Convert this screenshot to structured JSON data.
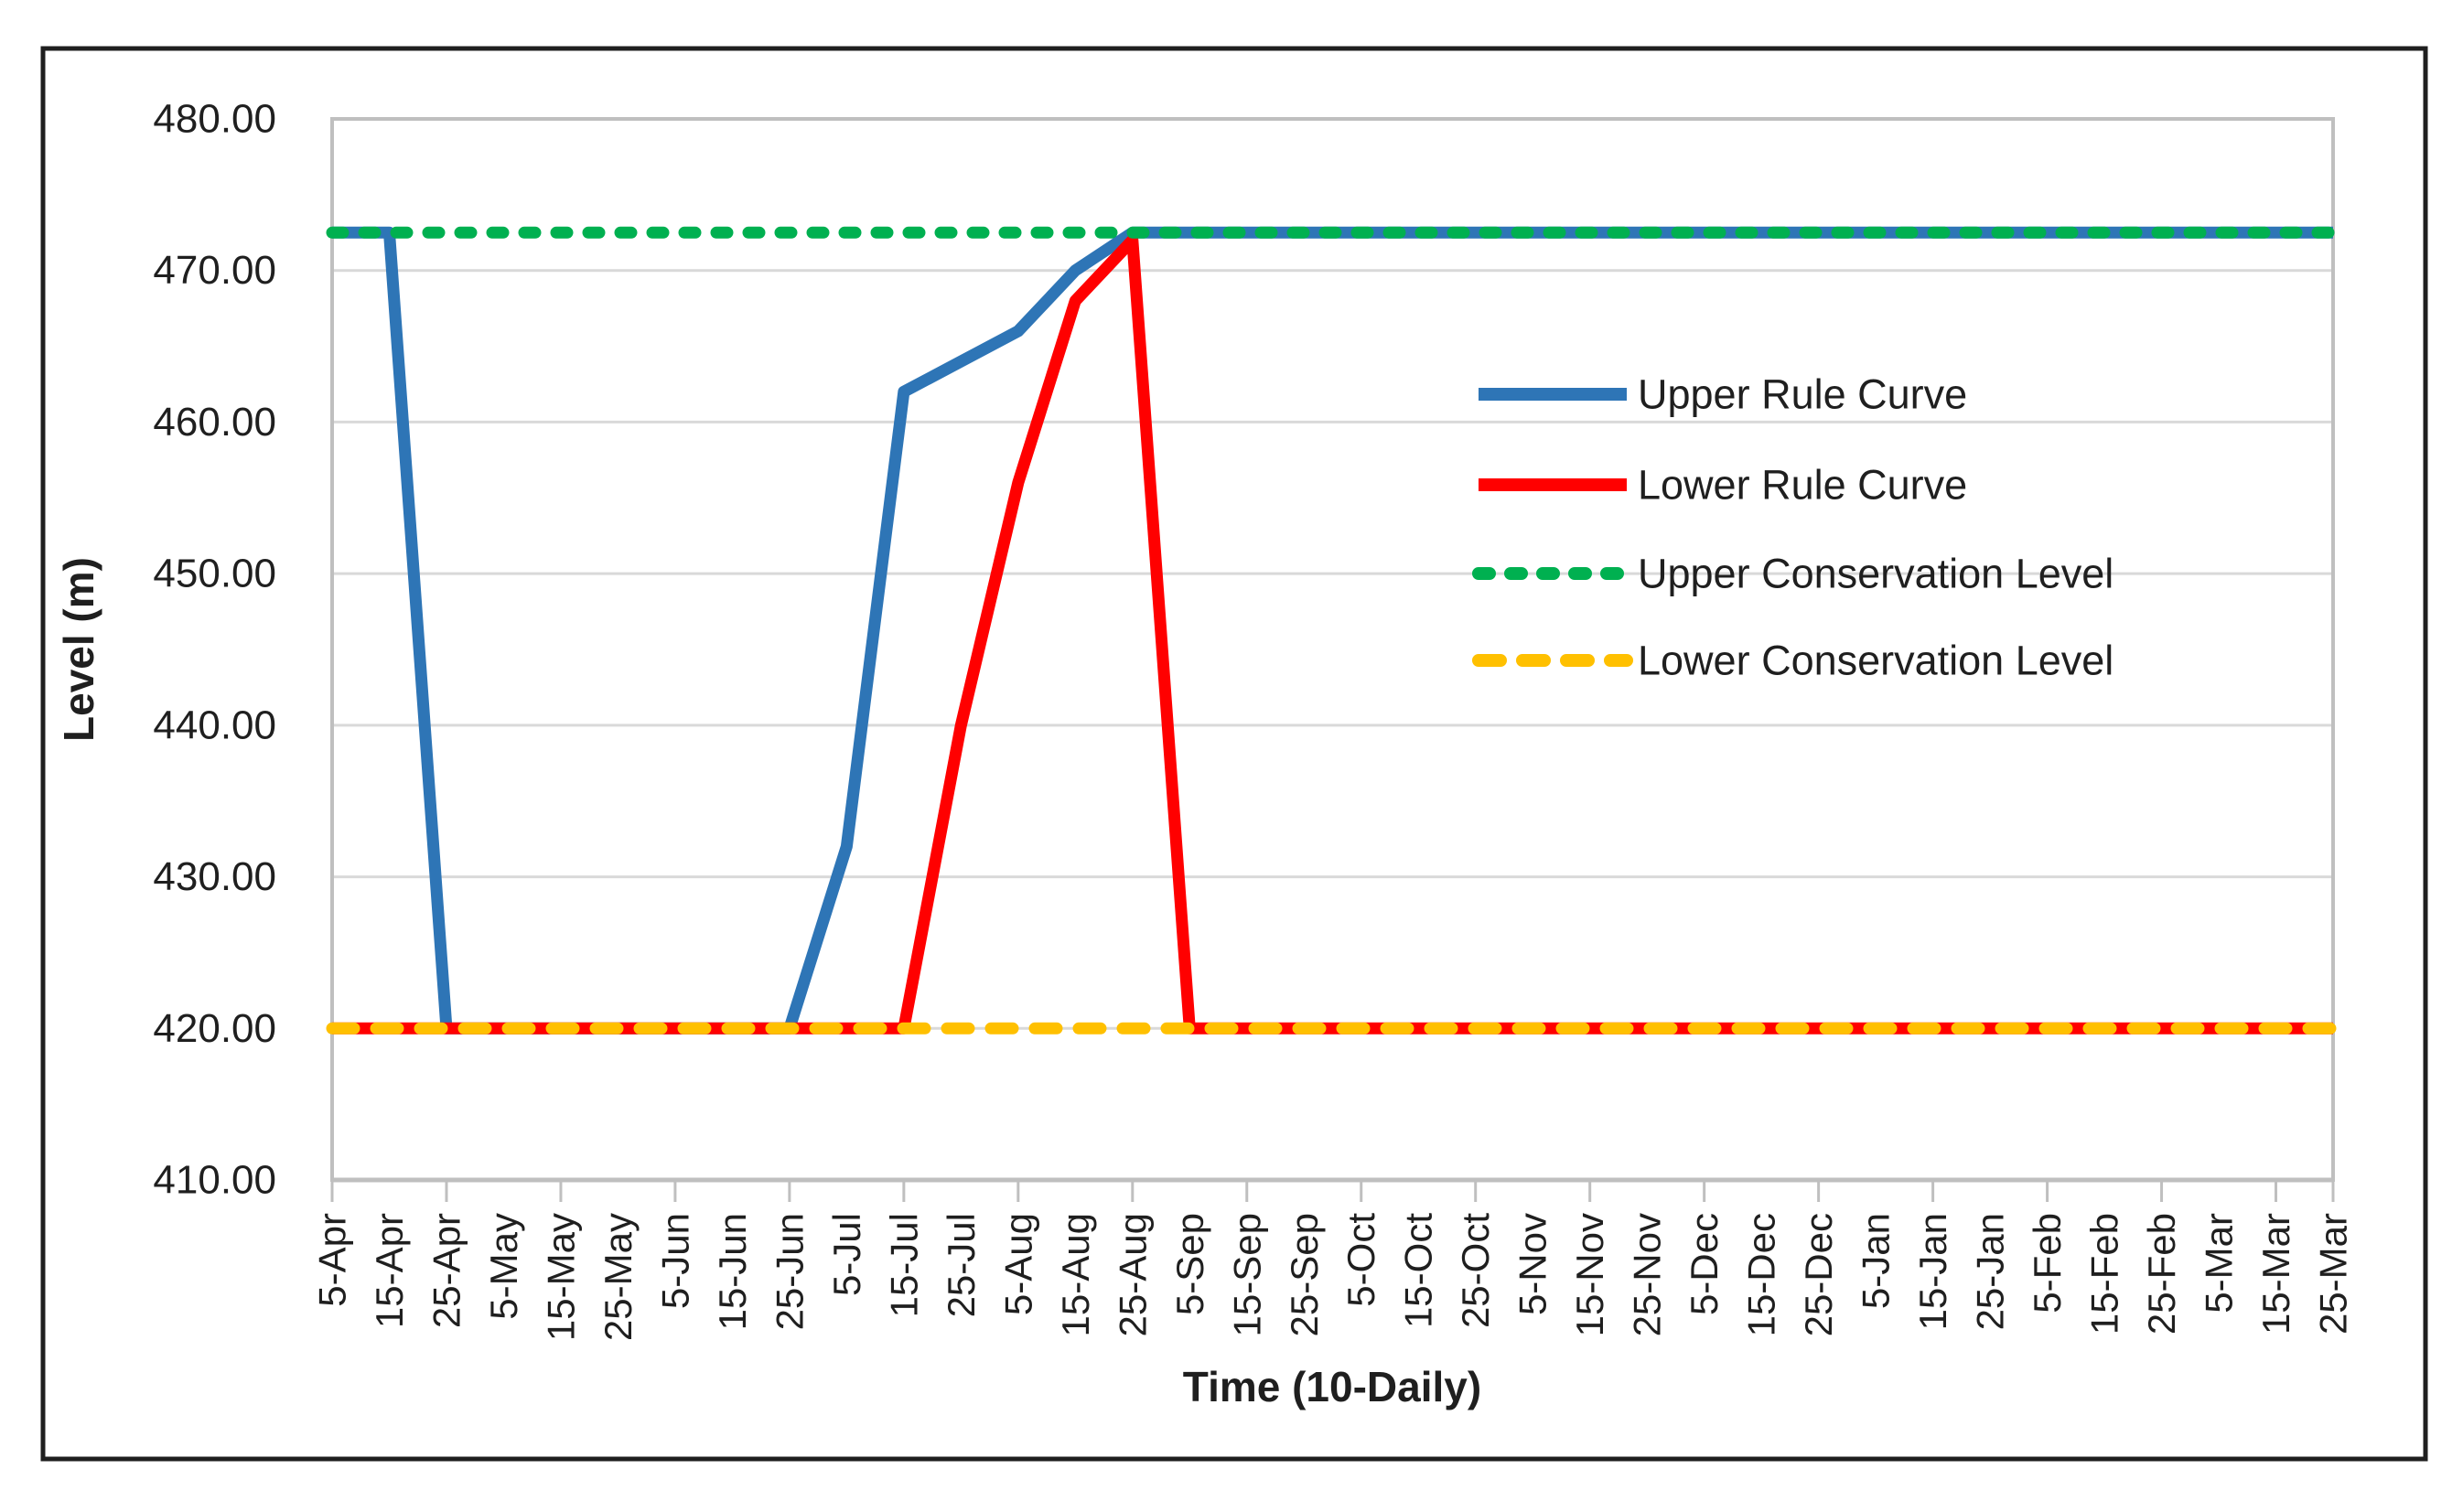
{
  "figure": {
    "background": "#ffffff",
    "border_color": "#1f1f1f"
  },
  "chart_data": {
    "type": "line",
    "title": "",
    "xlabel": "Time (10-Daily)",
    "ylabel": "Level (m)",
    "grid": "horizontal",
    "gridline_color": "#D9D9D9",
    "axis_color": "#BFBFBF",
    "text_color": "#1f1f1f",
    "legend_position": "center-right",
    "x_categories": [
      "5-Apr",
      "15-Apr",
      "25-Apr",
      "5-May",
      "15-May",
      "25-May",
      "5-Jun",
      "15-Jun",
      "25-Jun",
      "5-Jul",
      "15-Jul",
      "25-Jul",
      "5-Aug",
      "15-Aug",
      "25-Aug",
      "5-Sep",
      "15-Sep",
      "25-Sep",
      "5-Oct",
      "15-Oct",
      "25-Oct",
      "5-Nov",
      "15-Nov",
      "25-Nov",
      "5-Dec",
      "15-Dec",
      "25-Dec",
      "5-Jan",
      "15-Jan",
      "25-Jan",
      "5-Feb",
      "15-Feb",
      "25-Feb",
      "5-Mar",
      "15-Mar",
      "25-Mar"
    ],
    "y_axis": {
      "min": 410,
      "max": 480,
      "tick_step": 10,
      "tick_labels": [
        "410.00",
        "420.00",
        "430.00",
        "440.00",
        "450.00",
        "460.00",
        "470.00",
        "480.00"
      ]
    },
    "series": [
      {
        "name": "Upper Rule Curve",
        "color": "#2E75B6",
        "style": "solid",
        "values": [
          472.5,
          472.5,
          420,
          420,
          420,
          420,
          420,
          420,
          420,
          432,
          462,
          464,
          466,
          470,
          472.5,
          472.5,
          472.5,
          472.5,
          472.5,
          472.5,
          472.5,
          472.5,
          472.5,
          472.5,
          472.5,
          472.5,
          472.5,
          472.5,
          472.5,
          472.5,
          472.5,
          472.5,
          472.5,
          472.5,
          472.5,
          472.5
        ]
      },
      {
        "name": "Lower Rule Curve",
        "color": "#FF0000",
        "style": "solid",
        "values": [
          420,
          420,
          420,
          420,
          420,
          420,
          420,
          420,
          420,
          420,
          420,
          440,
          456,
          468,
          472,
          420,
          420,
          420,
          420,
          420,
          420,
          420,
          420,
          420,
          420,
          420,
          420,
          420,
          420,
          420,
          420,
          420,
          420,
          420,
          420,
          420
        ]
      },
      {
        "name": "Upper Conservation Level",
        "color": "#00B050",
        "style": "dashed",
        "values": [
          472.5,
          472.5,
          472.5,
          472.5,
          472.5,
          472.5,
          472.5,
          472.5,
          472.5,
          472.5,
          472.5,
          472.5,
          472.5,
          472.5,
          472.5,
          472.5,
          472.5,
          472.5,
          472.5,
          472.5,
          472.5,
          472.5,
          472.5,
          472.5,
          472.5,
          472.5,
          472.5,
          472.5,
          472.5,
          472.5,
          472.5,
          472.5,
          472.5,
          472.5,
          472.5,
          472.5
        ]
      },
      {
        "name": "Lower Conservation Level",
        "color": "#FFC000",
        "style": "dashed",
        "values": [
          420,
          420,
          420,
          420,
          420,
          420,
          420,
          420,
          420,
          420,
          420,
          420,
          420,
          420,
          420,
          420,
          420,
          420,
          420,
          420,
          420,
          420,
          420,
          420,
          420,
          420,
          420,
          420,
          420,
          420,
          420,
          420,
          420,
          420,
          420,
          420
        ]
      }
    ]
  }
}
